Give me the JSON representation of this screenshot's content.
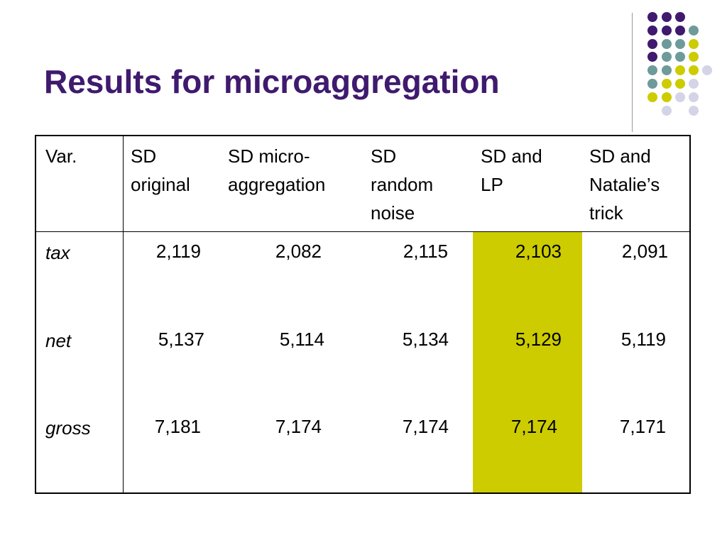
{
  "slide": {
    "title": "Results for microaggregation",
    "colors": {
      "title": "#3f1a6e",
      "highlight": "#cccc00",
      "dot_purple": "#3f1a6e",
      "dot_teal": "#6e9a9a",
      "dot_yellow": "#cccc00",
      "dot_lavender": "#d4d4e8"
    }
  },
  "table": {
    "headers": {
      "var": "Var.",
      "c1": [
        "SD",
        "original"
      ],
      "c2": [
        "SD micro-",
        "aggregation"
      ],
      "c3": [
        "SD",
        "random",
        "noise"
      ],
      "c4": [
        "SD and",
        "LP"
      ],
      "c5": [
        "SD and",
        "Natalie’s",
        "trick"
      ]
    },
    "rows": [
      {
        "var": "tax",
        "c1": "2,119",
        "c2": "2,082",
        "c3": "2,115",
        "c4": "2,103",
        "c5": "2,091"
      },
      {
        "var": "net",
        "c1": "5,137",
        "c2": "5,114",
        "c3": "5,134",
        "c4": "5,129",
        "c5": "5,119"
      },
      {
        "var": "gross",
        "c1": "7,181",
        "c2": "7,174",
        "c3": "7,174",
        "c4": "7,174",
        "c5": "7,171"
      }
    ],
    "highlighted_column": "SD and LP"
  }
}
